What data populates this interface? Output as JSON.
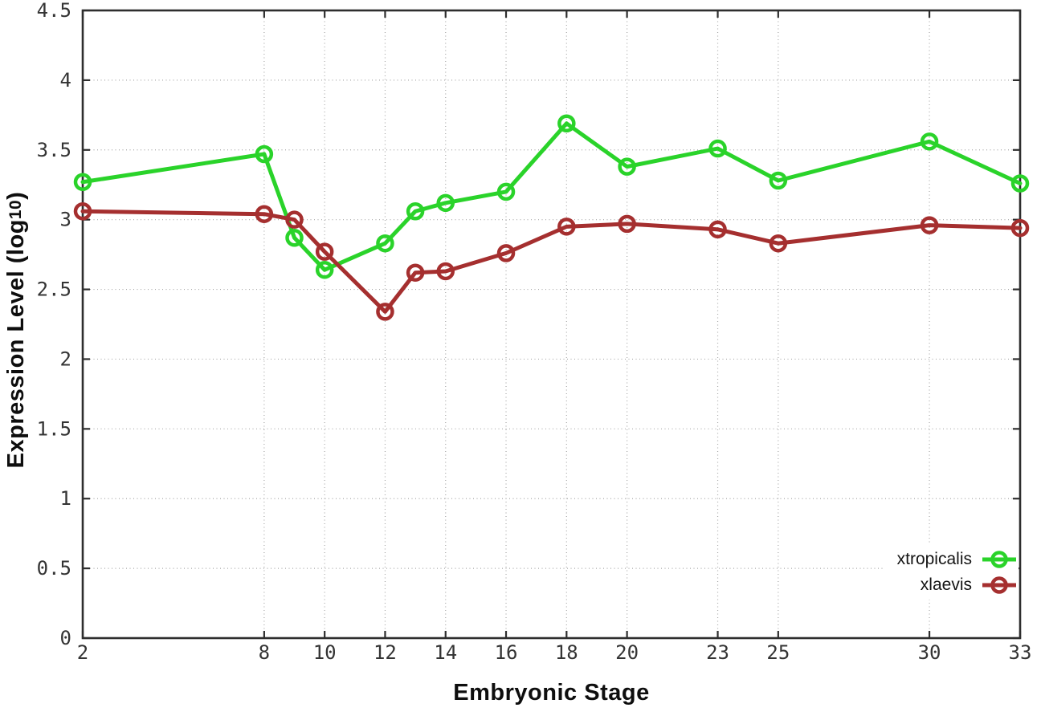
{
  "figure": {
    "background": "#ffffff",
    "xlabel": "Embryonic Stage",
    "ylabel_prefix": "Expression Level (log",
    "ylabel_sub": "10",
    "ylabel_suffix": ")"
  },
  "legend": {
    "position": "bottom-right",
    "entries": [
      {
        "label": "xtropicalis",
        "color": "#2ad32a"
      },
      {
        "label": "xlaevis",
        "color": "#a52f2f"
      }
    ]
  },
  "chart_data": {
    "type": "line",
    "title": "",
    "xlabel": "Embryonic Stage",
    "ylabel": "Expression Level (log10)",
    "xlim": [
      2,
      33
    ],
    "ylim": [
      0,
      4.5
    ],
    "grid": true,
    "legend_position": "bottom-right",
    "marker": "open-circle",
    "x": [
      2,
      8,
      9,
      10,
      12,
      13,
      14,
      16,
      18,
      20,
      23,
      25,
      30,
      33
    ],
    "xtick_values": [
      2,
      8,
      10,
      12,
      14,
      16,
      18,
      20,
      23,
      25,
      30,
      33
    ],
    "xtick_labels": [
      "2",
      "8",
      "10",
      "12",
      "14",
      "16",
      "18",
      "20",
      "23",
      "25",
      "30",
      "33"
    ],
    "ytick_values": [
      0,
      0.5,
      1,
      1.5,
      2,
      2.5,
      3,
      3.5,
      4,
      4.5
    ],
    "ytick_labels": [
      "0",
      "0.5",
      "1",
      "1.5",
      "2",
      "2.5",
      "3",
      "3.5",
      "4",
      "4.5"
    ],
    "series": [
      {
        "name": "xtropicalis",
        "color": "#2ad32a",
        "values": [
          3.27,
          3.47,
          2.87,
          2.64,
          2.83,
          3.06,
          3.12,
          3.2,
          3.69,
          3.38,
          3.51,
          3.28,
          3.56,
          3.26
        ]
      },
      {
        "name": "xlaevis",
        "color": "#a52f2f",
        "values": [
          3.06,
          3.04,
          3.0,
          2.77,
          2.34,
          2.62,
          2.63,
          2.76,
          2.95,
          2.97,
          2.93,
          2.83,
          2.96,
          2.94
        ]
      }
    ]
  }
}
